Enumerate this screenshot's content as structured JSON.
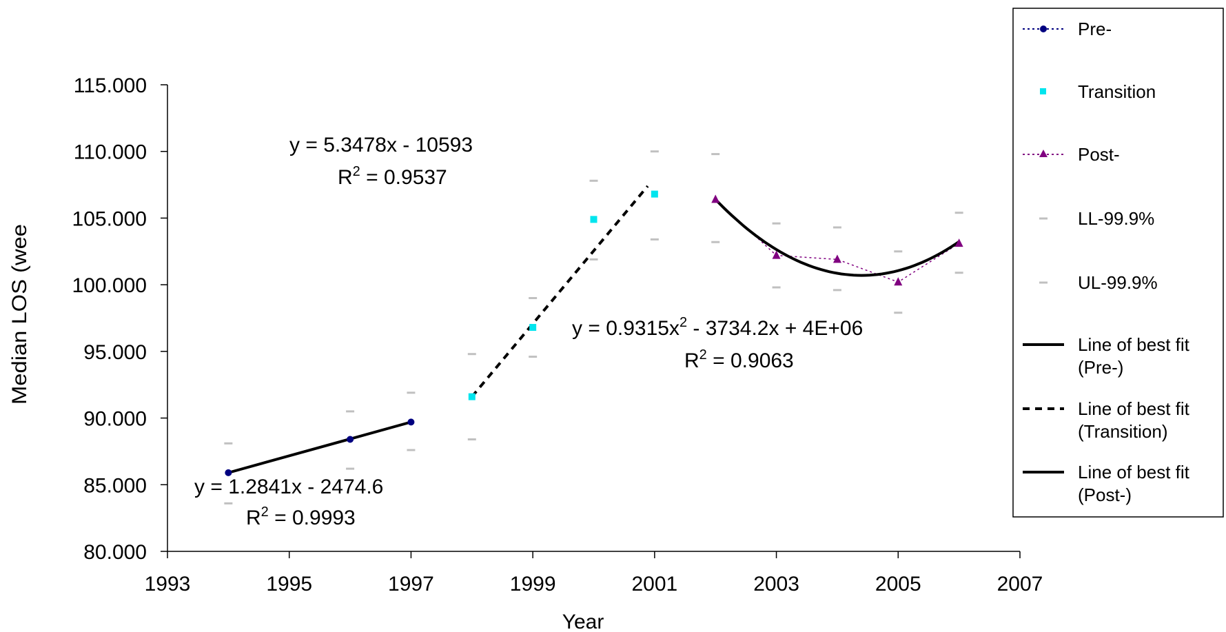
{
  "chart_data": {
    "type": "scatter",
    "xlabel": "Year",
    "ylabel": "Median LOS (wee",
    "xlim": [
      1993,
      2007
    ],
    "ylim": [
      80,
      115
    ],
    "x_ticks": [
      "1993",
      "1995",
      "1997",
      "1999",
      "2001",
      "2003",
      "2005",
      "2007"
    ],
    "x_tick_values": [
      1993,
      1995,
      1997,
      1999,
      2001,
      2003,
      2005,
      2007
    ],
    "y_ticks": [
      "80.000",
      "85.000",
      "90.000",
      "95.000",
      "100.000",
      "105.000",
      "110.000",
      "115.000"
    ],
    "y_tick_values": [
      80,
      85,
      90,
      95,
      100,
      105,
      110,
      115
    ],
    "series": [
      {
        "name": "Pre-",
        "color": "#000080",
        "marker": "circle",
        "line": "dotted",
        "x": [
          1994,
          1996,
          1997
        ],
        "y": [
          85.9,
          88.4,
          89.7
        ]
      },
      {
        "name": "Transition",
        "color": "#00E5EE",
        "marker": "square",
        "line": "none",
        "x": [
          1998,
          1999,
          2000,
          2001
        ],
        "y": [
          91.6,
          96.8,
          104.9,
          106.8
        ]
      },
      {
        "name": "Post-",
        "color": "#800080",
        "marker": "triangle",
        "line": "dotted",
        "x": [
          2002,
          2003,
          2004,
          2005,
          2006
        ],
        "y": [
          106.4,
          102.2,
          101.9,
          100.2,
          103.1
        ]
      },
      {
        "name": "LL-99.9%",
        "color": "#C0C0C0",
        "marker": "dash",
        "line": "none",
        "x": [
          1994,
          1996,
          1997,
          1998,
          1999,
          2000,
          2001,
          2002,
          2003,
          2004,
          2005,
          2006
        ],
        "y": [
          83.6,
          86.2,
          87.6,
          88.4,
          94.6,
          101.9,
          103.4,
          103.2,
          99.8,
          99.6,
          97.9,
          100.9
        ]
      },
      {
        "name": "UL-99.9%",
        "color": "#C0C0C0",
        "marker": "dash",
        "line": "none",
        "x": [
          1994,
          1996,
          1997,
          1998,
          1999,
          2000,
          2001,
          2002,
          2003,
          2004,
          2005,
          2006
        ],
        "y": [
          88.1,
          90.5,
          91.9,
          94.8,
          99.0,
          107.8,
          110.0,
          109.8,
          104.6,
          104.3,
          102.5,
          105.4
        ]
      }
    ],
    "fits": [
      {
        "name": "Line of best fit (Pre-)",
        "label_lines": [
          "Line of best fit",
          "(Pre-)"
        ],
        "style": "solid",
        "kind": "linear",
        "x_range": [
          1994,
          1997
        ],
        "y_start": 85.9,
        "y_end": 89.7,
        "equation": "y = 1.2841x - 2474.6",
        "r2_label": "R",
        "r2_sup": "2",
        "r2_value": " = 0.9993"
      },
      {
        "name": "Line of best fit (Transition)",
        "label_lines": [
          "Line of best fit",
          "(Transition)"
        ],
        "style": "dashed",
        "kind": "linear",
        "x_range": [
          1998,
          2001
        ],
        "y_start": 91.6,
        "y_end": 107.4,
        "equation": "y = 5.3478x - 10593",
        "r2_label": "R",
        "r2_sup": "2",
        "r2_value": " = 0.9537"
      },
      {
        "name": "Line of best fit (Post-)",
        "label_lines": [
          "Line of best fit",
          "(Post-)"
        ],
        "style": "solid",
        "kind": "quadratic",
        "x_range": [
          2002,
          2006
        ],
        "vertex_x": 2004.4,
        "vertex_y": 100.7,
        "y_start": 106.4,
        "equation_pre": "y = 0.9315x",
        "equation_sup": "2",
        "equation_post": " - 3734.2x + 4E+06",
        "r2_label": "R",
        "r2_sup": "2",
        "r2_value": " = 0.9063"
      }
    ],
    "legend_placement": "right",
    "grid": false
  }
}
